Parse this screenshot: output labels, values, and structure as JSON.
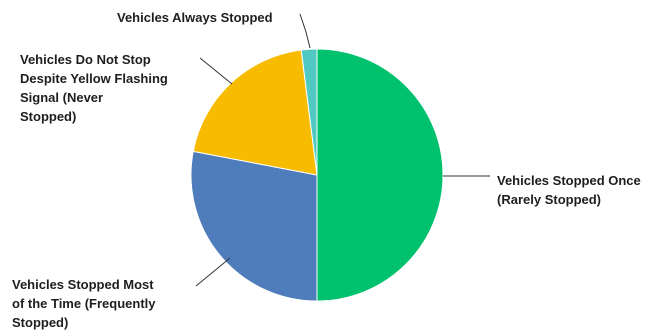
{
  "chart_data": {
    "type": "pie",
    "title": "",
    "slices": [
      {
        "label": "Vehicles Stopped Once\n(Rarely Stopped)",
        "value": 50,
        "color": "#00c16e"
      },
      {
        "label": "Vehicles Stopped Most\nof the Time (Frequently\nStopped)",
        "value": 28,
        "color": "#4f7cba"
      },
      {
        "label": "Vehicles Do Not Stop\nDespite Yellow Flashing\nSignal (Never\nStopped)",
        "value": 20,
        "color": "#f7bb00"
      },
      {
        "label": "Vehicles Always Stopped",
        "value": 2,
        "color": "#4fc9c1"
      }
    ],
    "start_angle": "12 o'clock",
    "direction": "clockwise",
    "legend": "none",
    "labels": "outside with leader lines"
  }
}
